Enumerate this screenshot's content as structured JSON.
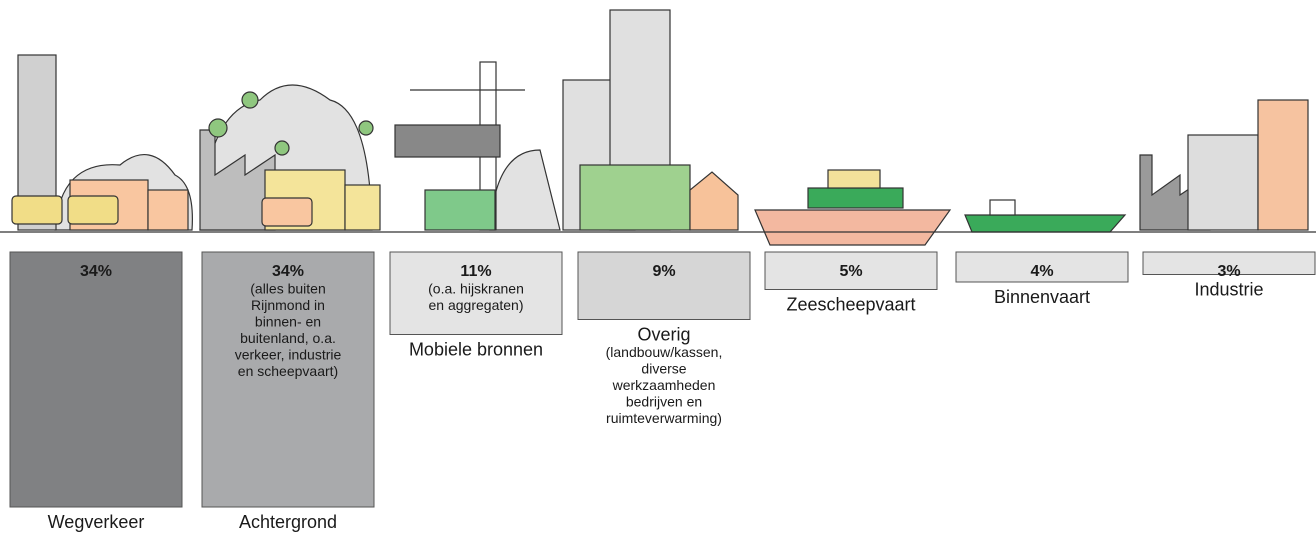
{
  "chart_data": {
    "type": "bar",
    "categories": [
      "Wegverkeer",
      "Achtergrond",
      "Mobiele bronnen",
      "Overig",
      "Zeescheepvaart",
      "Binnenvaart",
      "Industrie"
    ],
    "values": [
      34,
      34,
      11,
      9,
      5,
      4,
      3
    ],
    "value_labels": [
      "34%",
      "34%",
      "11%",
      "9%",
      "5%",
      "4%",
      "3%"
    ],
    "notes": [
      null,
      [
        "(alles buiten",
        "Rijnmond in",
        "binnen- en",
        "buitenland, o.a.",
        "verkeer, industrie",
        "en scheepvaart)"
      ],
      [
        "(o.a. hijskranen",
        "en aggregaten)"
      ],
      [
        "(landbouw/kassen,",
        "diverse",
        "werkzaamheden",
        "bedrijven en",
        "ruimteverwarming)"
      ],
      null,
      null,
      null
    ],
    "colors": [
      "#808183",
      "#a9aaac",
      "#e4e4e4",
      "#d6d6d6",
      "#e4e4e4",
      "#e4e4e4",
      "#e4e4e4"
    ]
  }
}
